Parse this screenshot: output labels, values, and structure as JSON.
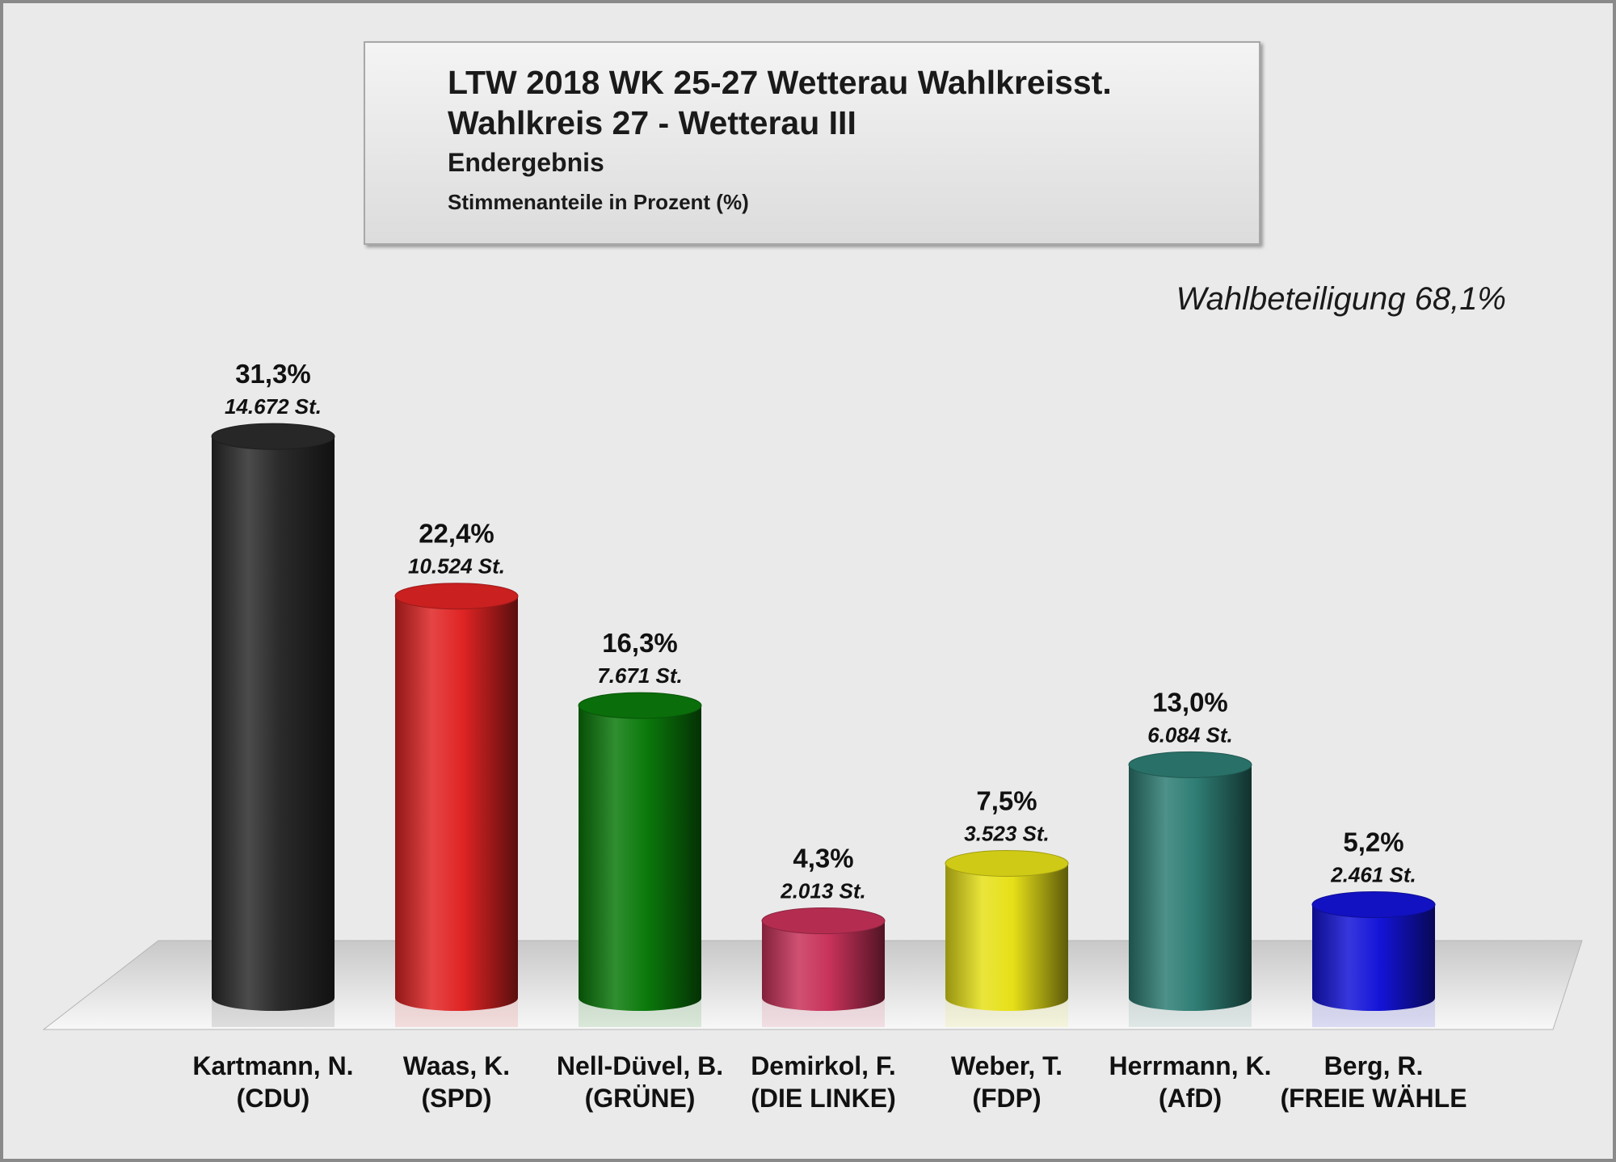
{
  "header": {
    "title_line1": "LTW 2018 WK 25-27 Wetterau Wahlkreisst.",
    "title_line2": "Wahlkreis 27 - Wetterau III",
    "subtitle": "Endergebnis",
    "unit_note": "Stimmenanteile in Prozent (%)"
  },
  "turnout_label": "Wahlbeteiligung 68,1%",
  "chart_data": {
    "type": "bar",
    "style": "3d-cylinder",
    "ylim": [
      0,
      35
    ],
    "grid": false,
    "legend": "none",
    "categories": [
      [
        "Kartmann, N.",
        "(CDU)"
      ],
      [
        "Waas, K.",
        "(SPD)"
      ],
      [
        "Nell-Düvel, B.",
        "(GRÜNE)"
      ],
      [
        "Demirkol, F.",
        "(DIE LINKE)"
      ],
      [
        "Weber, T.",
        "(FDP)"
      ],
      [
        "Herrmann, K.",
        "(AfD)"
      ],
      [
        "Berg, R.",
        "(FREIE WÄHLE"
      ]
    ],
    "values": [
      31.3,
      22.4,
      16.3,
      4.3,
      7.5,
      13.0,
      5.2
    ],
    "value_labels": [
      "31,3%",
      "22,4%",
      "16,3%",
      "4,3%",
      "7,5%",
      "13,0%",
      "5,2%"
    ],
    "vote_labels": [
      "14.672 St.",
      "10.524 St.",
      "7.671 St.",
      "2.013 St.",
      "3.523 St.",
      "6.084 St.",
      "2.461 St."
    ],
    "colors": [
      "#2b2b2b",
      "#e02424",
      "#0b7a0b",
      "#c8325a",
      "#e6e018",
      "#2e7d74",
      "#1414d8"
    ]
  }
}
